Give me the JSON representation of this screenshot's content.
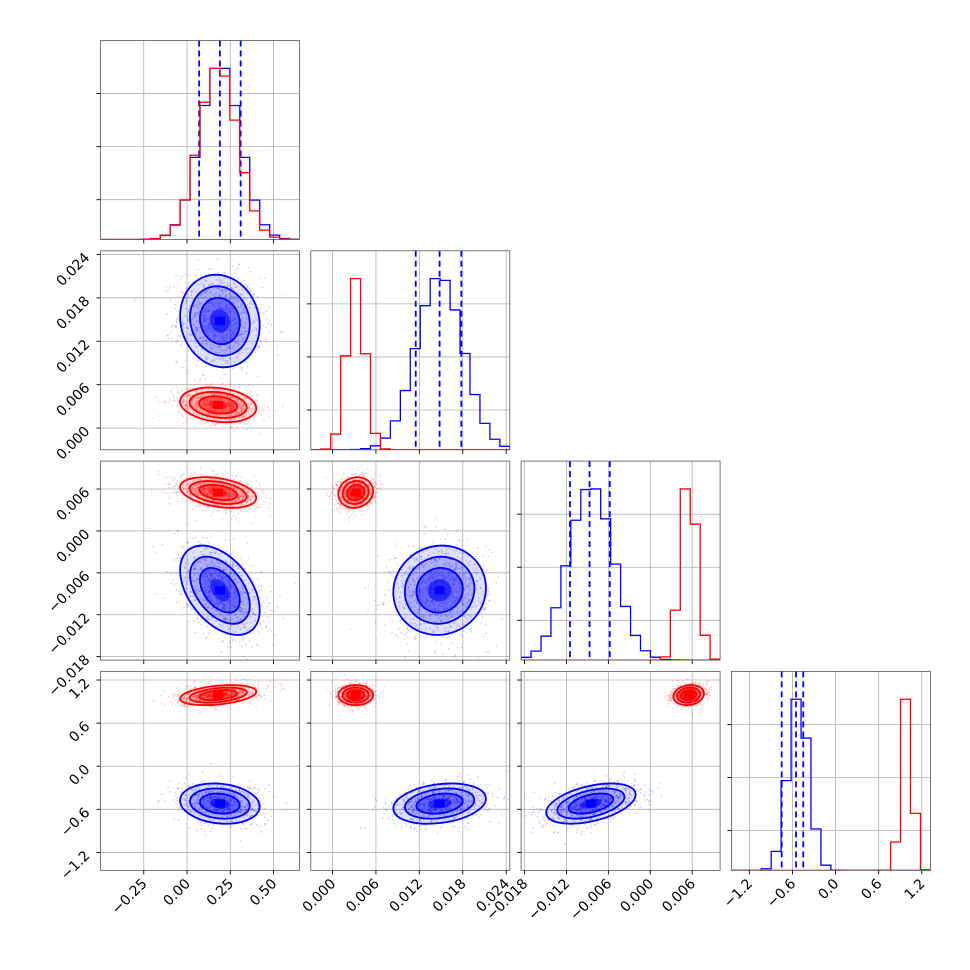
{
  "chart_data": {
    "type": "corner",
    "title": "",
    "grid": true,
    "colors": {
      "blue": "#0000ff",
      "red": "#ff0000",
      "grid": "#b0b0b0",
      "axes": "#000000"
    },
    "variables": [
      {
        "range": [
          -0.5,
          0.65
        ],
        "ticks": [
          -0.25,
          0.0,
          0.25,
          0.5
        ],
        "tick_labels": [
          "−0.25",
          "0.00",
          "0.25",
          "0.50"
        ]
      },
      {
        "range": [
          -0.003,
          0.0245
        ],
        "ticks": [
          0.0,
          0.006,
          0.012,
          0.018,
          0.024
        ],
        "tick_labels": [
          "0.000",
          "0.006",
          "0.012",
          "0.018",
          "0.024"
        ]
      },
      {
        "range": [
          -0.0185,
          0.01
        ],
        "ticks": [
          -0.018,
          -0.012,
          -0.006,
          0.0,
          0.006
        ],
        "tick_labels": [
          "−0.018",
          "−0.012",
          "−0.006",
          "0.000",
          "0.006"
        ]
      },
      {
        "range": [
          -1.45,
          1.32
        ],
        "ticks": [
          -1.2,
          -0.6,
          0.0,
          0.6,
          1.2
        ],
        "tick_labels": [
          "−1.2",
          "−0.6",
          "0.0",
          "0.6",
          "1.2"
        ]
      }
    ],
    "series": [
      {
        "color": "blue",
        "means": [
          0.19,
          0.0148,
          -0.0085,
          -0.52
        ],
        "sds": [
          0.115,
          0.0032,
          0.0032,
          0.14
        ],
        "corr": [
          [
            1,
            0,
            0,
            0
          ],
          [
            0,
            1,
            0,
            0
          ],
          [
            0,
            0,
            1,
            0
          ],
          [
            0,
            0,
            0,
            1
          ]
        ],
        "corr_pairs": {
          "1-0": -0.1,
          "2-0": -0.45,
          "3-0": -0.15,
          "2-1": 0.05,
          "3-1": 0.25,
          "3-2": 0.45
        },
        "quantiles": [
          [
            0.07,
            0.19,
            0.31
          ],
          [
            0.0115,
            0.0148,
            0.0178
          ],
          [
            -0.0115,
            -0.0087,
            -0.0058
          ],
          [
            -0.75,
            -0.55,
            -0.45
          ]
        ]
      },
      {
        "color": "red",
        "means": [
          0.18,
          0.0032,
          0.0055,
          0.99
        ],
        "sds": [
          0.11,
          0.0012,
          0.0011,
          0.07
        ],
        "corr": [
          [
            1,
            0,
            0,
            0
          ],
          [
            0,
            1,
            0,
            0
          ],
          [
            0,
            0,
            1,
            0
          ],
          [
            0,
            0,
            0,
            1
          ]
        ],
        "corr_pairs": {
          "1-0": -0.2,
          "2-0": -0.35,
          "3-0": 0.35,
          "2-1": 0.1,
          "3-1": 0.0,
          "3-2": 0.15
        },
        "quantiles": []
      }
    ]
  }
}
